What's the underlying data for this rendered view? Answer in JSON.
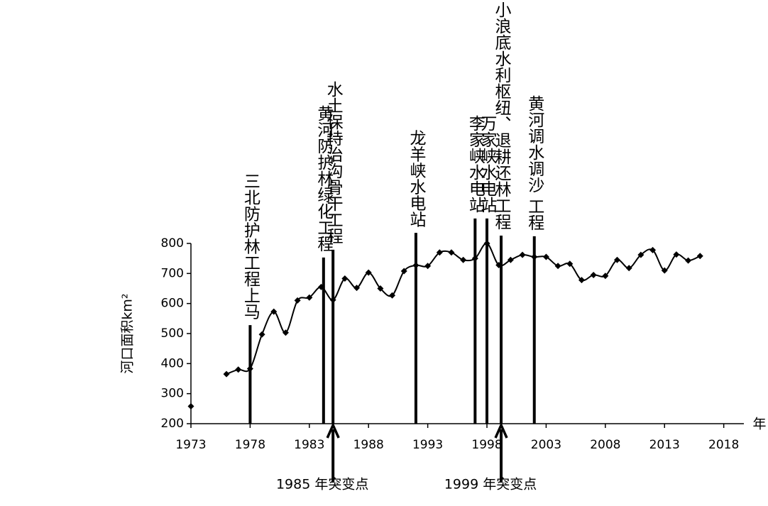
{
  "chart_data": {
    "type": "line",
    "y_label": "河口面积km²",
    "x_label": "年",
    "x": [
      1973,
      1974,
      1975,
      1976,
      1977,
      1978,
      1979,
      1980,
      1981,
      1982,
      1983,
      1984,
      1985,
      1986,
      1987,
      1988,
      1989,
      1990,
      1991,
      1992,
      1993,
      1994,
      1995,
      1996,
      1997,
      1998,
      1999,
      2000,
      2001,
      2002,
      2003,
      2004,
      2005,
      2006,
      2007,
      2008,
      2009,
      2010,
      2011,
      2012,
      2013,
      2014,
      2015,
      2016
    ],
    "series": [
      {
        "color": "#000000",
        "values": [
          258,
          null,
          null,
          365,
          380,
          383,
          497,
          573,
          503,
          610,
          620,
          655,
          612,
          683,
          652,
          703,
          650,
          627,
          708,
          727,
          725,
          770,
          770,
          745,
          750,
          800,
          728,
          745,
          762,
          755,
          755,
          725,
          732,
          678,
          695,
          692,
          745,
          718,
          762,
          778,
          710,
          763,
          743,
          758
        ]
      }
    ],
    "xlim": [
      1973,
      2019.7
    ],
    "xticks": [
      1973,
      1978,
      1983,
      1988,
      1993,
      1998,
      2003,
      2008,
      2013,
      2018
    ],
    "ylim": [
      200,
      800
    ],
    "yticks": [
      200,
      300,
      400,
      500,
      600,
      700,
      800
    ],
    "grid": false,
    "events": [
      {
        "label": "三北防护林工程上马",
        "x": 1978,
        "top": 528
      },
      {
        "label": "黄河防护林绿化工程",
        "x": 1984.2,
        "top": 753
      },
      {
        "label": "水土保持治沟骨干工程",
        "x": 1985,
        "top": 779
      },
      {
        "label": "龙羊峡水电站",
        "x": 1992,
        "top": 835
      },
      {
        "label": "李家峡水电站",
        "x": 1997,
        "top": 883
      },
      {
        "label": "万家峡水电站",
        "x": 1998,
        "top": 883
      },
      {
        "label": "小浪底水利枢纽、退耕还林工程",
        "x": 1999.2,
        "top": 826
      },
      {
        "label": "黄河调水调沙 工程",
        "x": 2002,
        "top": 824
      }
    ],
    "change_points": [
      {
        "label": "1985 年突变点",
        "x": 1985
      },
      {
        "label": "1999 年突变点",
        "x": 1999.2
      }
    ]
  }
}
